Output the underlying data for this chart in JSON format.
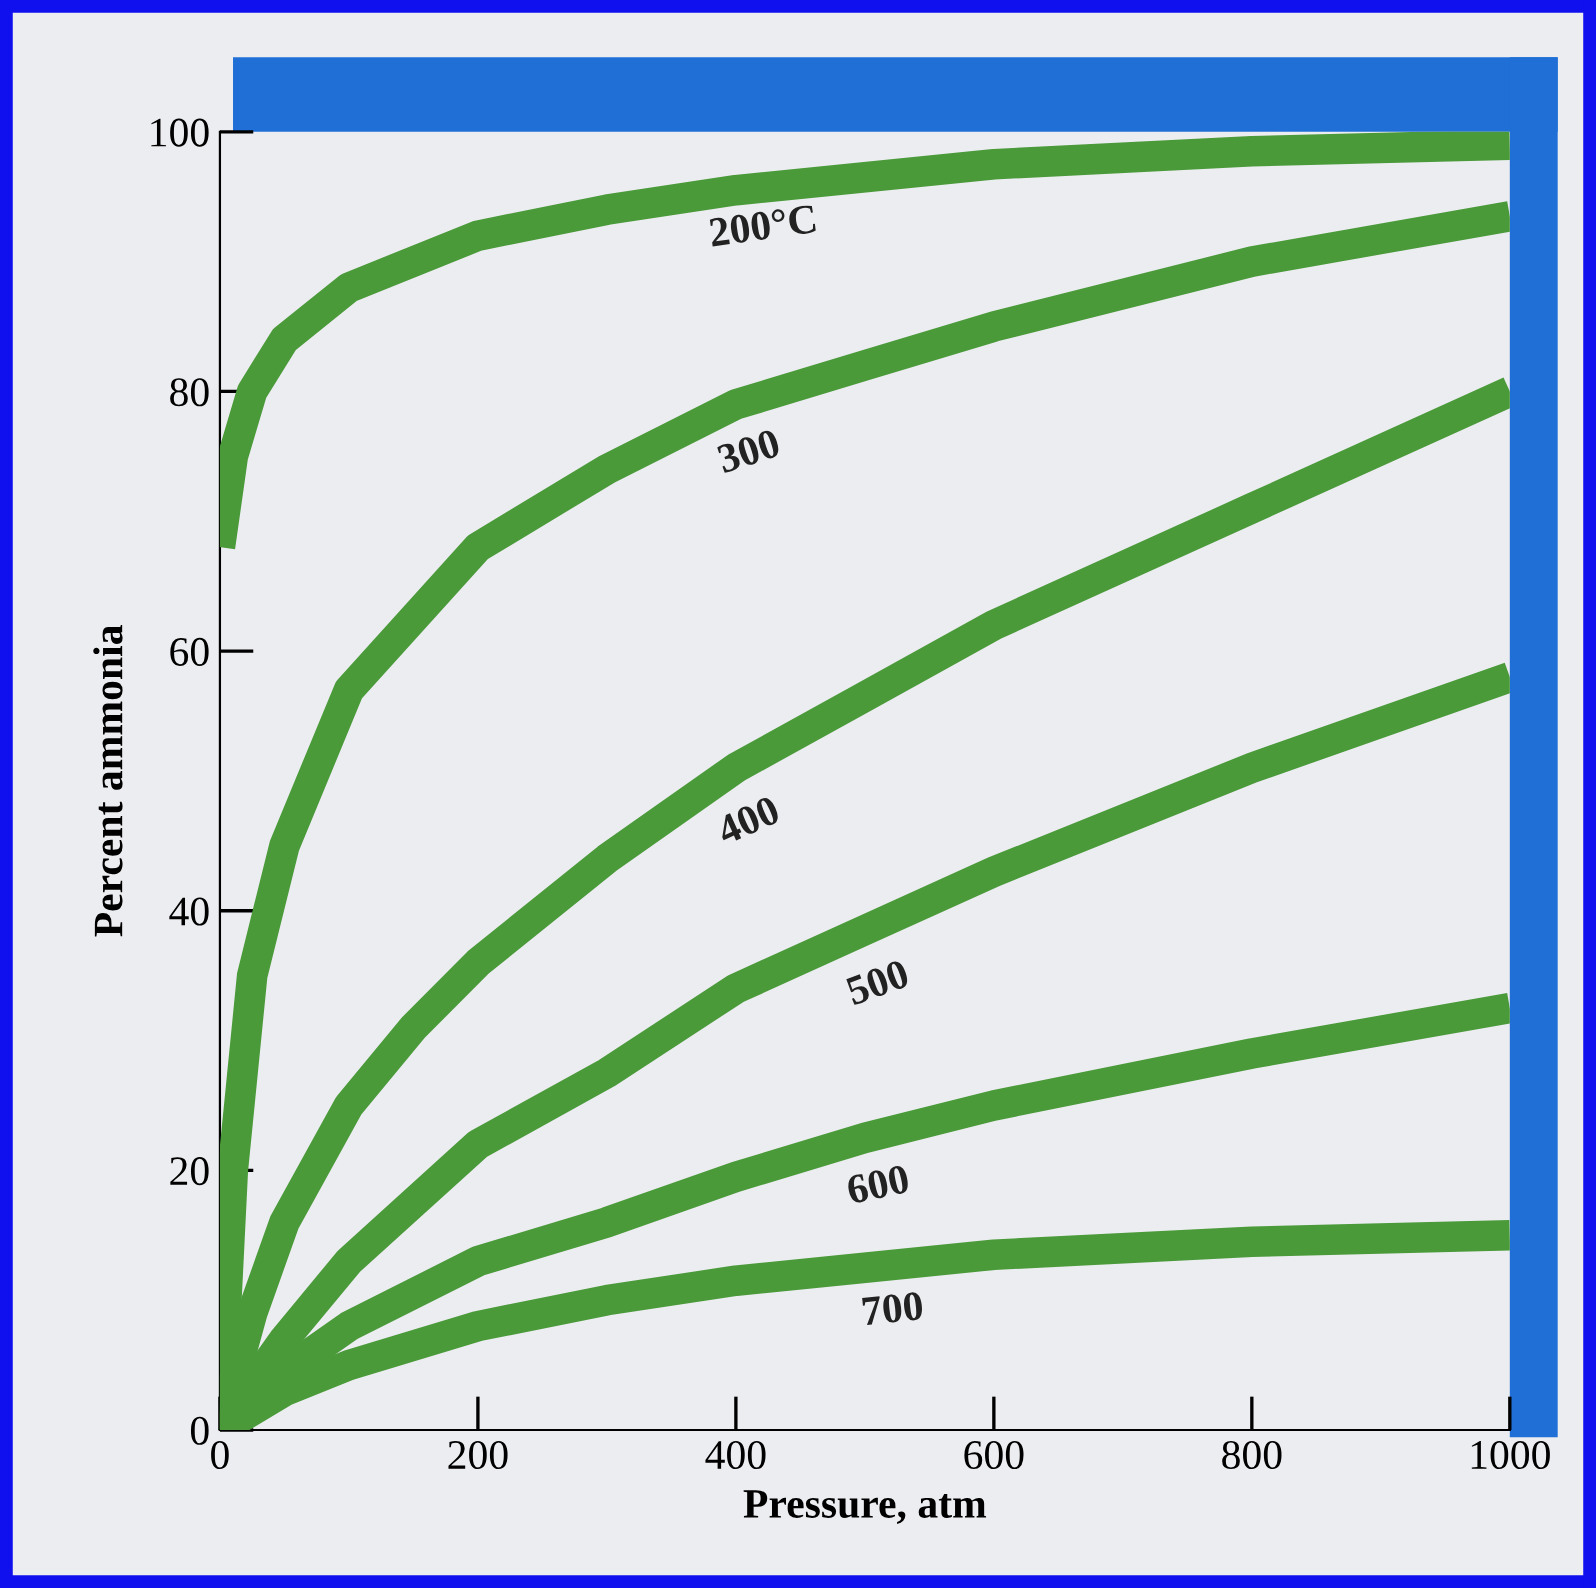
{
  "chart_data": {
    "type": "line",
    "xlabel": "Pressure, atm",
    "ylabel": "Percent ammonia",
    "xlim": [
      0,
      1000
    ],
    "xticks": [
      0,
      200,
      400,
      600,
      800,
      1000
    ],
    "ylim": [
      0,
      100
    ],
    "yticks": [
      0,
      20,
      40,
      60,
      80,
      100
    ],
    "grid": false,
    "legend": false,
    "marker": "none",
    "line_style": "solid",
    "series": [
      {
        "name": "200°C",
        "color": "#4a9a3a",
        "x": [
          0,
          10,
          25,
          50,
          100,
          200,
          300,
          400,
          600,
          800,
          1000
        ],
        "values": [
          68,
          75,
          80,
          84,
          88,
          92,
          94,
          95.5,
          97.5,
          98.5,
          99
        ]
      },
      {
        "name": "300",
        "color": "#4a9a3a",
        "x": [
          0,
          10,
          25,
          50,
          100,
          200,
          300,
          400,
          500,
          600,
          800,
          1000
        ],
        "values": [
          0,
          20,
          35,
          45,
          57,
          68,
          74,
          79,
          82,
          85,
          90,
          93.5
        ]
      },
      {
        "name": "400",
        "color": "#4a9a3a",
        "x": [
          0,
          25,
          50,
          100,
          150,
          200,
          300,
          400,
          500,
          600,
          800,
          1000
        ],
        "values": [
          0,
          9,
          16,
          25,
          31,
          36,
          44,
          51,
          56.5,
          62,
          71,
          80
        ]
      },
      {
        "name": "500",
        "color": "#4a9a3a",
        "x": [
          0,
          50,
          100,
          200,
          300,
          400,
          500,
          600,
          800,
          1000
        ],
        "values": [
          0,
          7,
          13,
          22,
          27.5,
          34,
          38.5,
          43,
          51,
          58
        ]
      },
      {
        "name": "600",
        "color": "#4a9a3a",
        "x": [
          0,
          50,
          100,
          200,
          300,
          400,
          500,
          600,
          800,
          1000
        ],
        "values": [
          0,
          4.5,
          8,
          13,
          16,
          19.5,
          22.5,
          25,
          29,
          32.5
        ]
      },
      {
        "name": "700",
        "color": "#4a9a3a",
        "x": [
          0,
          50,
          100,
          200,
          300,
          400,
          500,
          600,
          800,
          1000
        ],
        "values": [
          0,
          3,
          5,
          8,
          10,
          11.5,
          12.5,
          13.5,
          14.5,
          15
        ]
      }
    ]
  }
}
